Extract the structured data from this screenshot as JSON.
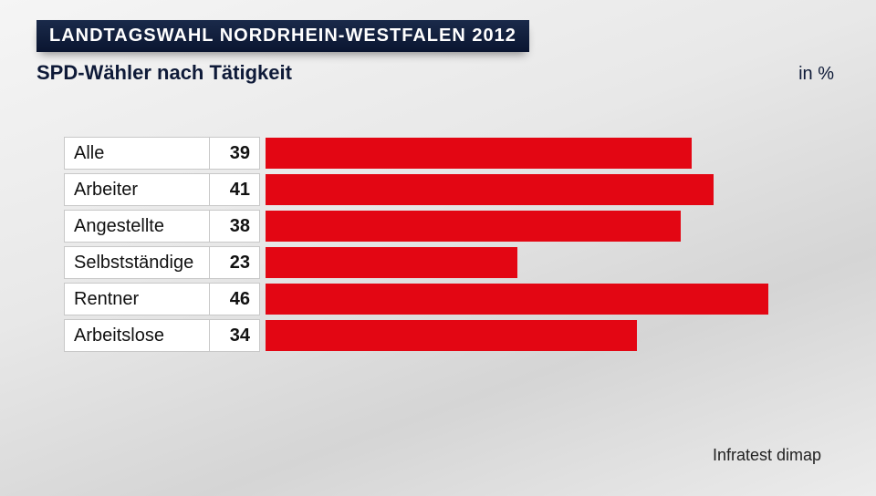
{
  "header": {
    "title": "LANDTAGSWAHL NORDRHEIN-WESTFALEN 2012",
    "subtitle": "SPD-Wähler nach Tätigkeit",
    "unit": "in %"
  },
  "chart": {
    "type": "bar",
    "bar_color": "#e30613",
    "cell_bg": "#ffffff",
    "cell_border": "#c8c8c8",
    "max_value": 50,
    "rows": [
      {
        "label": "Alle",
        "value": 39
      },
      {
        "label": "Arbeiter",
        "value": 41
      },
      {
        "label": "Angestellte",
        "value": 38
      },
      {
        "label": "Selbstständige",
        "value": 23
      },
      {
        "label": "Rentner",
        "value": 46
      },
      {
        "label": "Arbeitslose",
        "value": 34
      }
    ]
  },
  "source": "Infratest dimap"
}
